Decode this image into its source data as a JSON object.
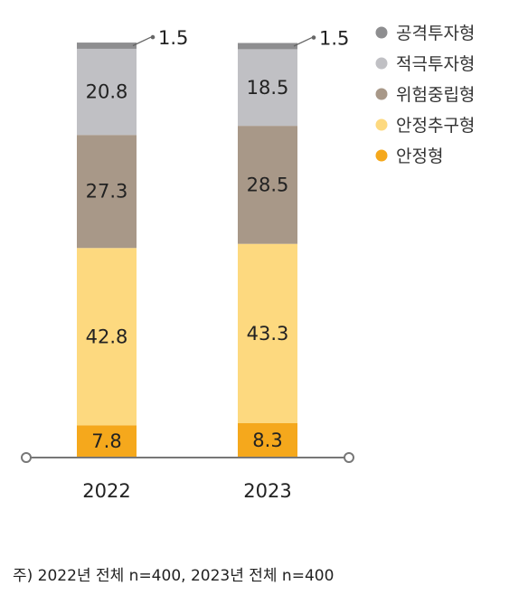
{
  "chart_data": {
    "type": "bar",
    "stacked": true,
    "categories": [
      "2022",
      "2023"
    ],
    "series": [
      {
        "name": "안정형",
        "values": [
          7.8,
          8.3
        ],
        "color": "#F5A81C"
      },
      {
        "name": "안정추구형",
        "values": [
          42.8,
          43.3
        ],
        "color": "#FDD97F"
      },
      {
        "name": "위험중립형",
        "values": [
          27.3,
          28.5
        ],
        "color": "#A89888"
      },
      {
        "name": "적극투자형",
        "values": [
          20.8,
          18.5
        ],
        "color": "#C0C0C4"
      },
      {
        "name": "공격투자형",
        "values": [
          1.5,
          1.5
        ],
        "color": "#8E8E90"
      }
    ],
    "legend": {
      "position": "top-right",
      "order": [
        "공격투자형",
        "적극투자형",
        "위험중립형",
        "안정추구형",
        "안정형"
      ]
    },
    "callout_series": "공격투자형",
    "ylim": [
      0,
      100
    ],
    "grid": false,
    "title": "",
    "xlabel": "",
    "ylabel": ""
  },
  "footnote": "주) 2022년 전체 n=400, 2023년 전체 n=400",
  "colors": {
    "axis": "#777777",
    "text": "#222222"
  }
}
